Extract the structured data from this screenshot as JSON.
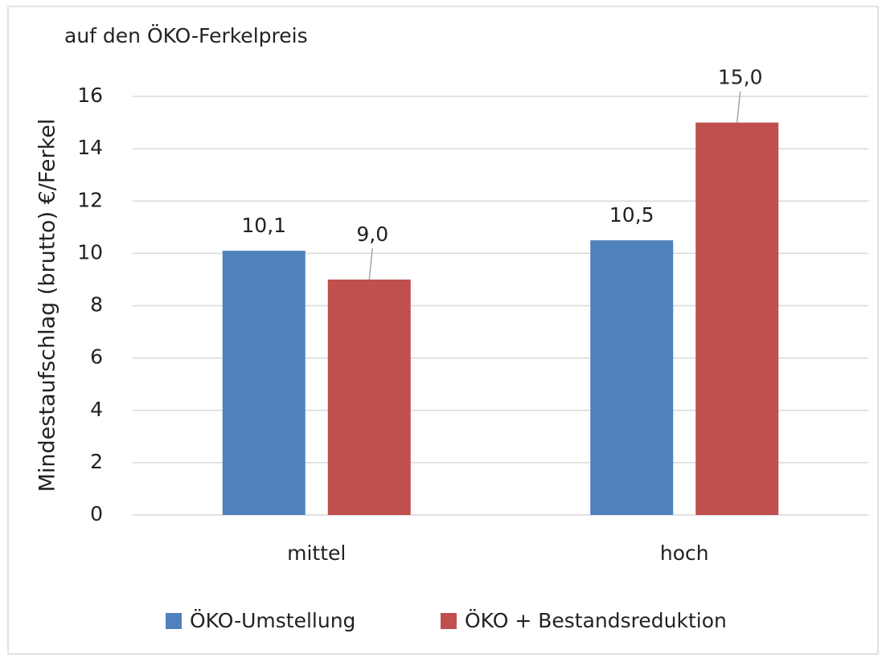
{
  "chart_data": {
    "type": "bar",
    "title": "auf den ÖKO-Ferkelpreis",
    "y_label": "Mindestaufschlag (brutto) €/Ferkel",
    "categories": [
      "mittel",
      "hoch"
    ],
    "series": [
      {
        "name": "ÖKO-Umstellung",
        "color": "#4f81bd",
        "values": [
          10.1,
          10.5
        ],
        "value_labels": [
          "10,1",
          "10,5"
        ]
      },
      {
        "name": "ÖKO + Bestandsreduktion",
        "color": "#c0504d",
        "values": [
          9.0,
          15.0
        ],
        "value_labels": [
          "9,0",
          "15,0"
        ]
      }
    ],
    "ylim": [
      0,
      16
    ],
    "yticks": [
      0,
      2,
      4,
      6,
      8,
      10,
      12,
      14,
      16
    ],
    "grid": true,
    "legend": "bottom"
  }
}
